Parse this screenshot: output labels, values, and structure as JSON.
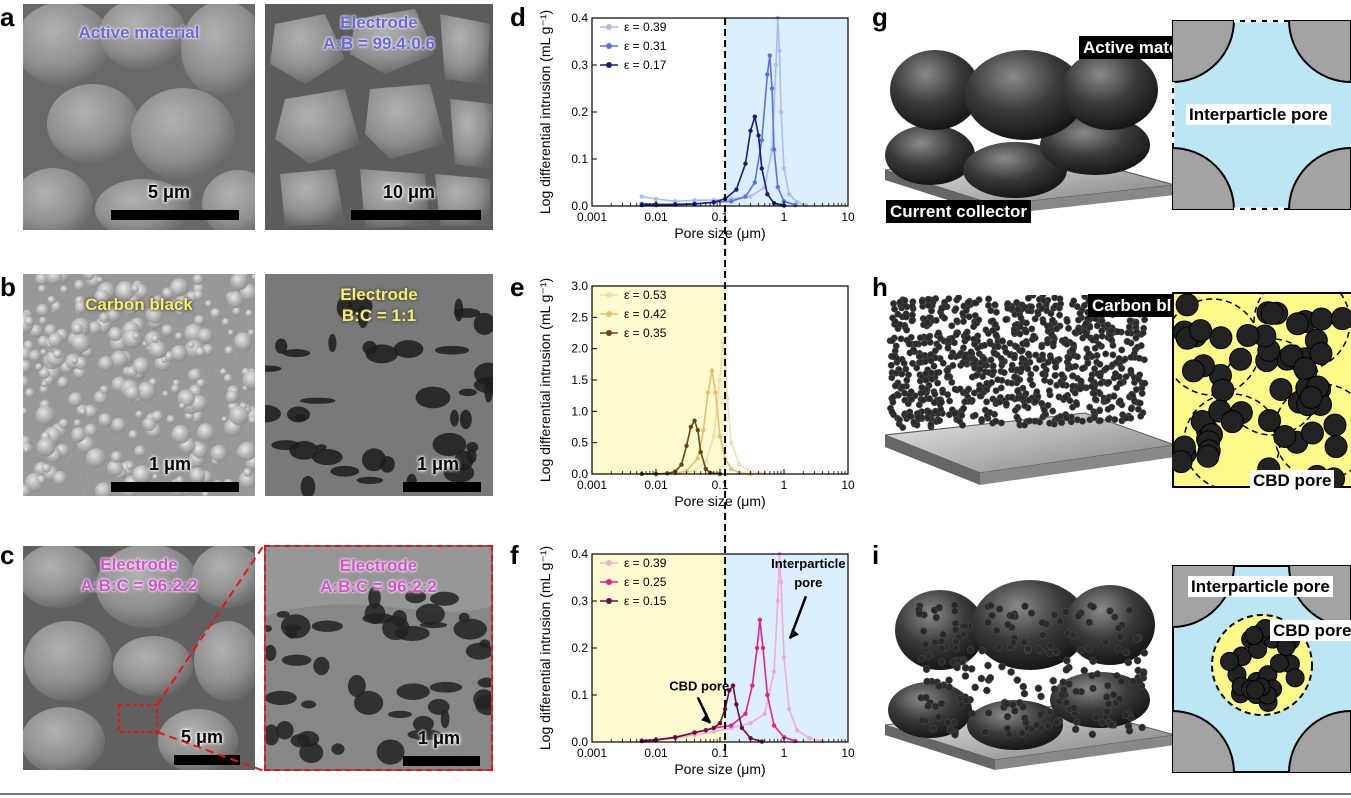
{
  "panels": {
    "a": {
      "label": "a",
      "left": {
        "caption": "Active material",
        "scale": "5 μm"
      },
      "right": {
        "caption_line1": "Electrode",
        "caption_line2": "A:B = 99.4:0.6",
        "scale": "10 μm"
      }
    },
    "b": {
      "label": "b",
      "left": {
        "caption": "Carbon black",
        "scale": "1 μm"
      },
      "right": {
        "caption_line1": "Electrode",
        "caption_line2": "B:C = 1:1",
        "scale": "1 μm"
      }
    },
    "c": {
      "label": "c",
      "left": {
        "caption_line1": "Electrode",
        "caption_line2": "A:B:C = 96:2:2",
        "scale": "5 μm"
      },
      "right": {
        "caption_line1": "Electrode",
        "caption_line2": "A:B:C = 96:2:2",
        "scale": "1 μm"
      }
    },
    "g": {
      "label": "g",
      "active_material": "Active material",
      "interparticle_pore": "Interparticle pore",
      "current_collector": "Current collector"
    },
    "h": {
      "label": "h",
      "carbon_black": "Carbon black",
      "cbd_pore": "CBD pore"
    },
    "i": {
      "label": "i",
      "interparticle_pore": "Interparticle pore",
      "cbd_pore": "CBD pore"
    }
  },
  "chart_data": [
    {
      "panel": "d",
      "type": "line",
      "xlabel": "Pore size (μm)",
      "ylabel": "Log differential intrusion (mL g⁻¹)",
      "xscale": "log",
      "xlim": [
        0.001,
        10
      ],
      "ylim": [
        0,
        0.4
      ],
      "xticks": [
        "0.001",
        "0.01",
        "0.1",
        "1",
        "10"
      ],
      "yticks": [
        "0.0",
        "0.1",
        "0.2",
        "0.3",
        "0.4"
      ],
      "shaded_region": {
        "from": 0.12,
        "to": 10,
        "color": "#dcefff"
      },
      "divider_x": 0.12,
      "legend_position": "top-left",
      "series": [
        {
          "name": "ε = 0.39",
          "color": "#a9bdf2",
          "x": [
            0.006,
            0.01,
            0.02,
            0.04,
            0.08,
            0.15,
            0.3,
            0.5,
            0.65,
            0.75,
            0.8,
            0.85,
            0.9,
            1.0,
            1.2,
            1.6,
            2.2
          ],
          "y": [
            0.02,
            0.015,
            0.01,
            0.012,
            0.013,
            0.015,
            0.02,
            0.04,
            0.12,
            0.3,
            0.4,
            0.33,
            0.2,
            0.08,
            0.025,
            0.008,
            0.002
          ]
        },
        {
          "name": "ε = 0.31",
          "color": "#5a72e6",
          "x": [
            0.006,
            0.01,
            0.02,
            0.04,
            0.08,
            0.15,
            0.25,
            0.35,
            0.45,
            0.55,
            0.6,
            0.65,
            0.7,
            0.8,
            1.0,
            1.5
          ],
          "y": [
            0.005,
            0.004,
            0.004,
            0.005,
            0.008,
            0.01,
            0.02,
            0.05,
            0.14,
            0.28,
            0.32,
            0.25,
            0.12,
            0.04,
            0.01,
            0.002
          ]
        },
        {
          "name": "ε = 0.17",
          "color": "#131e80",
          "x": [
            0.006,
            0.01,
            0.02,
            0.04,
            0.08,
            0.12,
            0.18,
            0.25,
            0.3,
            0.35,
            0.4,
            0.45,
            0.55,
            0.7,
            1.0
          ],
          "y": [
            0.002,
            0.002,
            0.003,
            0.004,
            0.008,
            0.015,
            0.035,
            0.09,
            0.16,
            0.19,
            0.15,
            0.08,
            0.025,
            0.006,
            0.001
          ]
        }
      ]
    },
    {
      "panel": "e",
      "type": "line",
      "xlabel": "Pore size (μm)",
      "ylabel": "Log differential intrusion (mL g⁻¹)",
      "xscale": "log",
      "xlim": [
        0.001,
        10
      ],
      "ylim": [
        0,
        3.0
      ],
      "xticks": [
        "0.001",
        "0.01",
        "0.1",
        "1",
        "10"
      ],
      "yticks": [
        "0.0",
        "0.5",
        "1.0",
        "1.5",
        "2.0",
        "2.5",
        "3.0"
      ],
      "shaded_region": {
        "from": 0.001,
        "to": 0.12,
        "color": "#fdfbcf"
      },
      "divider_x": 0.12,
      "legend_position": "top-left",
      "series": [
        {
          "name": "ε = 0.53",
          "color": "#f6dcae",
          "x": [
            0.02,
            0.04,
            0.06,
            0.08,
            0.1,
            0.11,
            0.12,
            0.13,
            0.15,
            0.2,
            0.3,
            0.5
          ],
          "y": [
            0.01,
            0.05,
            0.2,
            0.6,
            1.5,
            2.1,
            1.9,
            1.2,
            0.5,
            0.15,
            0.04,
            0.01
          ]
        },
        {
          "name": "ε = 0.42",
          "color": "#e5c069",
          "x": [
            0.01,
            0.02,
            0.03,
            0.045,
            0.055,
            0.065,
            0.075,
            0.085,
            0.1,
            0.12,
            0.15,
            0.2,
            0.3
          ],
          "y": [
            0.0,
            0.01,
            0.05,
            0.25,
            0.7,
            1.3,
            1.65,
            1.3,
            0.6,
            0.25,
            0.08,
            0.02,
            0.0
          ]
        },
        {
          "name": "ε = 0.35",
          "color": "#6b4612",
          "x": [
            0.006,
            0.01,
            0.015,
            0.02,
            0.025,
            0.03,
            0.035,
            0.04,
            0.045,
            0.05,
            0.06,
            0.07,
            0.1
          ],
          "y": [
            0.0,
            0.0,
            0.01,
            0.04,
            0.15,
            0.45,
            0.75,
            0.85,
            0.7,
            0.35,
            0.08,
            0.02,
            0.0
          ]
        }
      ]
    },
    {
      "panel": "f",
      "type": "line",
      "xlabel": "Pore size (μm)",
      "ylabel": "Log differential intrusion (mL g⁻¹)",
      "xscale": "log",
      "xlim": [
        0.001,
        10
      ],
      "ylim": [
        0,
        0.4
      ],
      "xticks": [
        "0.001",
        "0.01",
        "0.1",
        "1",
        "10"
      ],
      "yticks": [
        "0.0",
        "0.1",
        "0.2",
        "0.3",
        "0.4"
      ],
      "shaded_regions": [
        {
          "from": 0.001,
          "to": 0.12,
          "color": "#fdfbcf"
        },
        {
          "from": 0.12,
          "to": 10,
          "color": "#dcefff"
        }
      ],
      "divider_x": 0.12,
      "legend_position": "top-left",
      "annotations": [
        {
          "text": "CBD pore",
          "target_x": 0.07,
          "target_y": 0.04
        },
        {
          "text_line1": "Interparticle",
          "text_line2": "pore",
          "target_x": 1.0,
          "target_y": 0.22
        }
      ],
      "series": [
        {
          "name": "ε = 0.39",
          "color": "#f4a9d3",
          "x": [
            0.006,
            0.01,
            0.02,
            0.04,
            0.08,
            0.15,
            0.3,
            0.5,
            0.7,
            0.8,
            0.85,
            0.9,
            1.0,
            1.2,
            1.6,
            2.5,
            4.0
          ],
          "y": [
            0.002,
            0.004,
            0.008,
            0.015,
            0.022,
            0.03,
            0.04,
            0.06,
            0.15,
            0.3,
            0.4,
            0.34,
            0.18,
            0.07,
            0.025,
            0.008,
            0.002
          ]
        },
        {
          "name": "ε = 0.25",
          "color": "#e0238f",
          "x": [
            0.006,
            0.01,
            0.02,
            0.04,
            0.08,
            0.15,
            0.25,
            0.32,
            0.38,
            0.42,
            0.47,
            0.55,
            0.7,
            1.0,
            1.5
          ],
          "y": [
            0.003,
            0.005,
            0.01,
            0.02,
            0.03,
            0.035,
            0.06,
            0.12,
            0.2,
            0.26,
            0.2,
            0.1,
            0.035,
            0.01,
            0.002
          ]
        },
        {
          "name": "ε = 0.15",
          "color": "#6a0e3e",
          "x": [
            0.006,
            0.01,
            0.02,
            0.04,
            0.06,
            0.08,
            0.1,
            0.12,
            0.14,
            0.16,
            0.18,
            0.22,
            0.3,
            0.45
          ],
          "y": [
            0.002,
            0.004,
            0.01,
            0.02,
            0.025,
            0.03,
            0.04,
            0.07,
            0.11,
            0.12,
            0.08,
            0.03,
            0.008,
            0.001
          ]
        }
      ]
    }
  ]
}
